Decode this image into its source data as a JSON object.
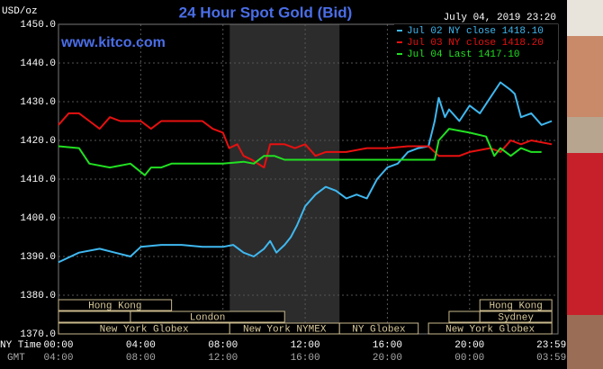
{
  "chart_data": {
    "type": "line",
    "title": "24 Hour Spot Gold (Bid)",
    "unit_label": "USD/oz",
    "timestamp": "July 04, 2019 23:20",
    "site": "www.kitco.com",
    "x_label_ny": "NY Time",
    "x_label_gmt": "GMT",
    "xlim": [
      0,
      24.3
    ],
    "ylim": [
      1370,
      1450
    ],
    "yticks": [
      {
        "value": 1370,
        "label": "1370.0"
      },
      {
        "value": 1380,
        "label": "1380.0"
      },
      {
        "value": 1390,
        "label": "1390.0"
      },
      {
        "value": 1400,
        "label": "1400.0"
      },
      {
        "value": 1410,
        "label": "1410.0"
      },
      {
        "value": 1420,
        "label": "1420.0"
      },
      {
        "value": 1430,
        "label": "1430.0"
      },
      {
        "value": 1440,
        "label": "1440.0"
      },
      {
        "value": 1450,
        "label": "1450.0"
      }
    ],
    "xticks": [
      {
        "value": 0,
        "label": "00:00"
      },
      {
        "value": 4,
        "label": "04:00"
      },
      {
        "value": 8,
        "label": "08:00"
      },
      {
        "value": 12,
        "label": "12:00"
      },
      {
        "value": 16,
        "label": "16:00"
      },
      {
        "value": 20,
        "label": "20:00"
      },
      {
        "value": 23.98,
        "label": "23:59"
      }
    ],
    "gmt_labels": [
      "04:00",
      "08:00",
      "12:00",
      "16:00",
      "20:00",
      "00:00",
      "03:59"
    ],
    "grid": true,
    "shaded": [
      8.33,
      13.67
    ],
    "session_rows": [
      [
        {
          "label": "Hong Kong",
          "start": 0,
          "end": 5.5
        },
        {
          "label": "Hong Kong",
          "start": 20.5,
          "end": 24
        }
      ],
      [
        {
          "label": null,
          "start": 0,
          "end": 3.5
        },
        {
          "label": "London",
          "start": 3.5,
          "end": 11
        },
        {
          "label": null,
          "start": 19,
          "end": 20.5
        },
        {
          "label": "Sydney",
          "start": 20.5,
          "end": 24
        }
      ],
      [
        {
          "label": "New York Globex",
          "start": 0,
          "end": 8.33
        },
        {
          "label": "New York NYMEX",
          "start": 8.33,
          "end": 13.67
        },
        {
          "label": "NY Globex",
          "start": 13.67,
          "end": 17.5
        },
        {
          "label": "New York Globex",
          "start": 18,
          "end": 24
        }
      ]
    ],
    "series": [
      {
        "name": "Jul 02 NY close 1418.10",
        "color": "#3fb8f0",
        "x": [
          0,
          1,
          2,
          3.5,
          4,
          5,
          6,
          7,
          8,
          8.5,
          9,
          9.5,
          10,
          10.3,
          10.6,
          11,
          11.3,
          11.6,
          12,
          12.5,
          13,
          13.5,
          14,
          14.5,
          15,
          15.5,
          16,
          16.5,
          17,
          17.5,
          18,
          18.3,
          18.5,
          18.8,
          19,
          19.5,
          20,
          20.5,
          21,
          21.5,
          22,
          22.2,
          22.5,
          23,
          23.5,
          24
        ],
        "values": [
          1388.5,
          1391,
          1392,
          1390,
          1392.5,
          1393,
          1393,
          1392.5,
          1392.5,
          1393,
          1391,
          1390,
          1392,
          1394,
          1391,
          1393,
          1395,
          1398,
          1403,
          1406,
          1408,
          1407,
          1405,
          1406,
          1405,
          1410,
          1413,
          1414,
          1417,
          1418,
          1418.5,
          1425,
          1431,
          1426,
          1428,
          1425,
          1429,
          1427,
          1431,
          1435,
          1433,
          1432,
          1426,
          1427,
          1424,
          1425
        ]
      },
      {
        "name": "Jul 03 NY close 1418.20",
        "color": "#e81010",
        "x": [
          0,
          0.5,
          1,
          1.5,
          2,
          2.5,
          3,
          4,
          4.5,
          5,
          6,
          7,
          7.5,
          8,
          8.3,
          8.7,
          9,
          9.4,
          10,
          10.3,
          11,
          11.5,
          12,
          12.5,
          13,
          14,
          15,
          16,
          17,
          18,
          18.5,
          19.5,
          20,
          21,
          21.5,
          22,
          22.5,
          23,
          24
        ],
        "values": [
          1424,
          1427,
          1427,
          1425,
          1423,
          1426,
          1425,
          1425,
          1423,
          1425,
          1425,
          1425,
          1423,
          1422,
          1418,
          1419,
          1416,
          1415,
          1413,
          1419,
          1419,
          1418,
          1419,
          1416,
          1417,
          1417,
          1418,
          1418,
          1418.5,
          1418.5,
          1416,
          1416,
          1417,
          1418,
          1417,
          1420,
          1419,
          1420,
          1419
        ]
      },
      {
        "name": "Jul 04 Last 1417.10",
        "color": "#22e022",
        "x": [
          0,
          1,
          1.5,
          2.5,
          3.5,
          4.2,
          4.5,
          5,
          5.5,
          6,
          7,
          8,
          9,
          9.5,
          10,
          10.5,
          11,
          12,
          14,
          16,
          17,
          18,
          18.3,
          18.5,
          19,
          20,
          20.8,
          21.2,
          21.5,
          22,
          22.5,
          23,
          23.5
        ],
        "values": [
          1418.5,
          1418,
          1414,
          1413,
          1414,
          1411,
          1413,
          1413,
          1414,
          1414,
          1414,
          1414,
          1414.5,
          1414,
          1416,
          1416,
          1415,
          1415,
          1415,
          1415,
          1415,
          1415,
          1415,
          1420,
          1423,
          1422,
          1421,
          1416,
          1418,
          1416,
          1418,
          1417,
          1417
        ]
      }
    ]
  }
}
